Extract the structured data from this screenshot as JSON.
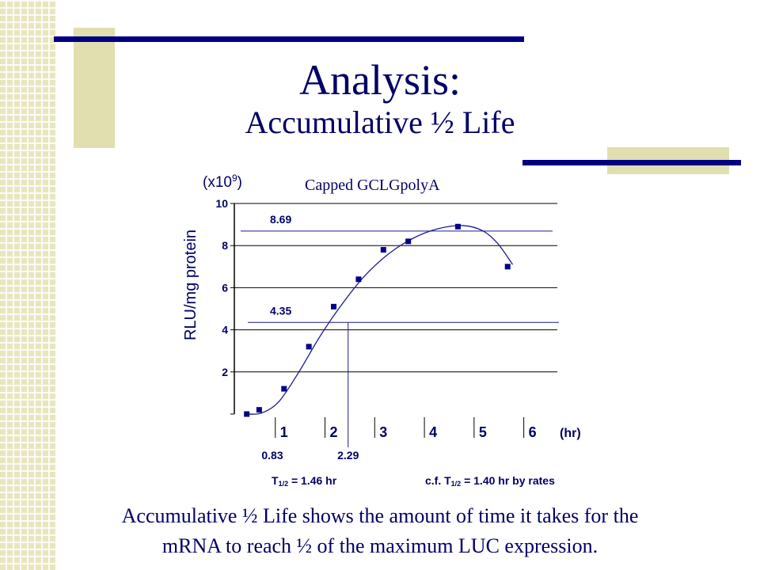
{
  "slide": {
    "title": "Analysis:",
    "subtitle": "Accumulative ½ Life",
    "caption_line1": "Accumulative ½ Life shows the amount of time it takes for the",
    "caption_line2": "mRNA to reach ½ of the maximum LUC expression."
  },
  "colors": {
    "title": "#000066",
    "accent_line": "#000080",
    "deco_block": "#e1deaf",
    "marker": "#00008b",
    "curve": "#1c1c8c"
  },
  "chart_data": {
    "type": "scatter",
    "title": "Capped GCLGpolyA",
    "ylabel": "RLU/mg protein",
    "yunit_base": "(x10",
    "yunit_exp": "9",
    "yunit_close": ")",
    "xunit": "(hr)",
    "xlim": [
      0,
      6.5
    ],
    "ylim": [
      0,
      10
    ],
    "xticks": [
      "1",
      "2",
      "3",
      "4",
      "5",
      "6"
    ],
    "yticks": [
      "2",
      "4",
      "6",
      "8",
      "10"
    ],
    "grid": "horizontal",
    "points": [
      {
        "x": 0.25,
        "y": 0.0
      },
      {
        "x": 0.5,
        "y": 0.2
      },
      {
        "x": 1.0,
        "y": 1.2
      },
      {
        "x": 1.5,
        "y": 3.2
      },
      {
        "x": 2.0,
        "y": 5.1
      },
      {
        "x": 2.5,
        "y": 6.4
      },
      {
        "x": 3.0,
        "y": 7.8
      },
      {
        "x": 3.5,
        "y": 8.2
      },
      {
        "x": 4.5,
        "y": 8.9
      },
      {
        "x": 5.5,
        "y": 7.0
      }
    ],
    "fit_curve": [
      {
        "x": 0.25,
        "y": 0.0
      },
      {
        "x": 0.55,
        "y": 0.05
      },
      {
        "x": 0.9,
        "y": 0.6
      },
      {
        "x": 1.3,
        "y": 2.0
      },
      {
        "x": 1.7,
        "y": 3.6
      },
      {
        "x": 2.1,
        "y": 5.0
      },
      {
        "x": 2.6,
        "y": 6.5
      },
      {
        "x": 3.1,
        "y": 7.6
      },
      {
        "x": 3.6,
        "y": 8.35
      },
      {
        "x": 4.1,
        "y": 8.8
      },
      {
        "x": 4.6,
        "y": 8.95
      },
      {
        "x": 5.0,
        "y": 8.7
      },
      {
        "x": 5.3,
        "y": 8.1
      },
      {
        "x": 5.6,
        "y": 7.1
      }
    ],
    "annotations": {
      "max_label": "8.69",
      "max_value": 8.69,
      "half_label": "4.35",
      "half_value": 4.35,
      "start_label": "0.83",
      "start_x": 0.83,
      "half_time_label": "2.29",
      "half_time_x": 2.29,
      "t_half_prefix": "T",
      "t_half_sub": "1/2",
      "t_half_value": " = 1.46 hr",
      "cf_prefix": "c.f. T",
      "cf_sub": "1/2",
      "cf_value": " = 1.40 hr by rates"
    }
  }
}
